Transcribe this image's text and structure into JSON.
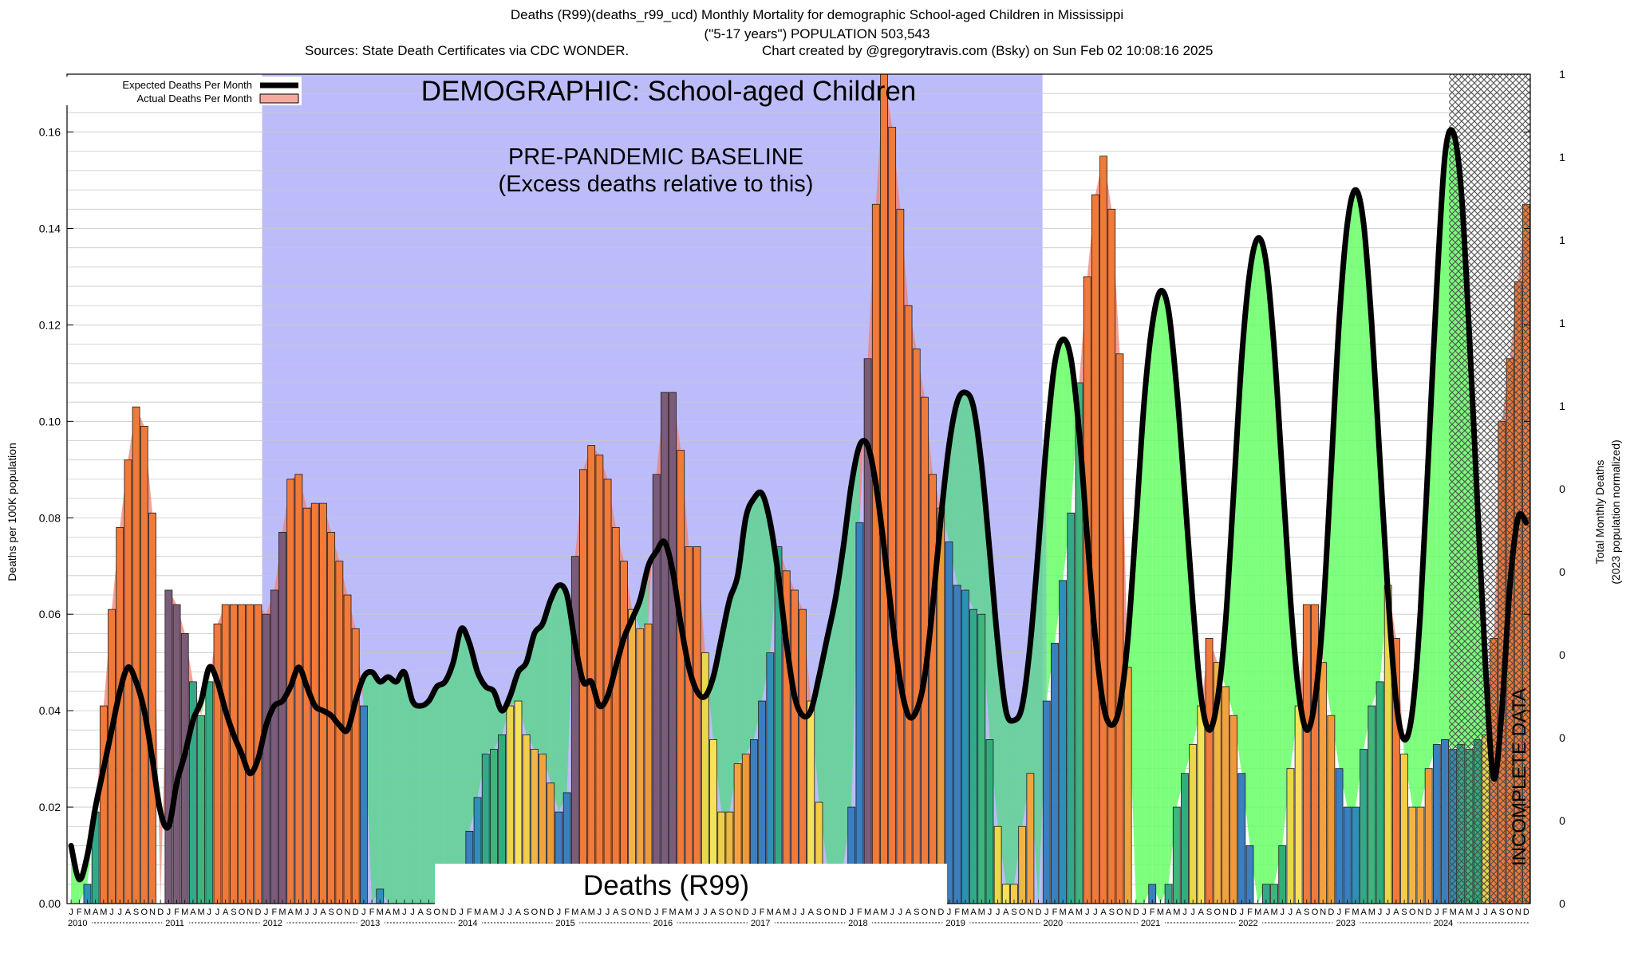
{
  "header": {
    "title": "Deaths (R99)(deaths_r99_ucd) Monthly Mortality for demographic School-aged Children in Mississippi",
    "subtitle": "(\"5-17 years\") POPULATION 503,543",
    "sources": "Sources: State Death Certificates via CDC WONDER.",
    "credit": "Chart created by @gregorytravis.com (Bsky) on Sun Feb 02 10:08:16 2025"
  },
  "legend": {
    "expected": "Expected Deaths Per Month",
    "actual": "Actual Deaths Per Month"
  },
  "annotations": {
    "demographic": "DEMOGRAPHIC: School-aged Children",
    "baseline_line1": "PRE-PANDEMIC BASELINE",
    "baseline_line2": "(Excess deaths relative to this)",
    "cause": "Deaths (R99)",
    "incomplete": "INCOMPLETE DATA"
  },
  "axes": {
    "ylabel_left": "Deaths per 100K population",
    "ylabel_right_1": "Total Monthly Deaths",
    "ylabel_right_2": "(2023 population normalized)"
  },
  "colors": {
    "baseline_band": "#bcbcfa",
    "excess_fill": "#f08070",
    "expected_line": "#000000",
    "deficit_green": "#66ff66",
    "incomplete_hatch": "#555555"
  },
  "chart_data": {
    "type": "bar",
    "title": "Deaths (R99)(deaths_r99_ucd) Monthly Mortality for demographic School-aged Children in Mississippi",
    "xlabel": "",
    "ylabel": "Deaths per 100K population",
    "ylim": [
      0,
      0.172
    ],
    "yticks": [
      0.0,
      0.02,
      0.04,
      0.06,
      0.08,
      0.1,
      0.12,
      0.14,
      0.16
    ],
    "ytick_labels": [
      "0.00",
      "0.02",
      "0.04",
      "0.06",
      "0.08",
      "0.10",
      "0.12",
      "0.14",
      "0.16"
    ],
    "right_tick_labels": [
      "1",
      "1",
      "1",
      "1",
      "1",
      "0",
      "0",
      "0",
      "0",
      "0",
      "0"
    ],
    "start": "2010-01",
    "month_letters": [
      "J",
      "F",
      "M",
      "A",
      "M",
      "J",
      "J",
      "A",
      "S",
      "O",
      "N",
      "D"
    ],
    "years": [
      "2010",
      "2011",
      "2012",
      "2013",
      "2014",
      "2015",
      "2016",
      "2017",
      "2018",
      "2019",
      "2020",
      "2021",
      "2022",
      "2023",
      "2024"
    ],
    "baseline_period": [
      "2012-01",
      "2019-12"
    ],
    "incomplete_period": [
      "2024-03",
      "2024-12"
    ],
    "grid": true,
    "legend_position": "top-left",
    "series": [
      {
        "name": "Actual Deaths Per Month",
        "values": [
          0.0,
          0.0,
          0.004,
          0.019,
          0.041,
          0.061,
          0.078,
          0.092,
          0.103,
          0.099,
          0.081,
          0.0,
          0.065,
          0.062,
          0.056,
          0.046,
          0.039,
          0.046,
          0.058,
          0.062,
          0.062,
          0.062,
          0.062,
          0.062,
          0.06,
          0.065,
          0.077,
          0.088,
          0.089,
          0.082,
          0.083,
          0.083,
          0.077,
          0.071,
          0.064,
          0.057,
          0.041,
          0.0,
          0.003,
          0.0,
          0.0,
          0.0,
          0.0,
          0.0,
          0.0,
          0.0,
          0.0,
          0.0,
          0.0,
          0.015,
          0.022,
          0.031,
          0.032,
          0.035,
          0.041,
          0.042,
          0.035,
          0.032,
          0.031,
          0.025,
          0.019,
          0.023,
          0.072,
          0.09,
          0.095,
          0.093,
          0.088,
          0.078,
          0.071,
          0.061,
          0.057,
          0.058,
          0.089,
          0.106,
          0.106,
          0.094,
          0.074,
          0.074,
          0.052,
          0.034,
          0.019,
          0.019,
          0.029,
          0.031,
          0.034,
          0.042,
          0.052,
          0.074,
          0.069,
          0.065,
          0.061,
          0.042,
          0.021,
          0.008,
          0.008,
          0.008,
          0.02,
          0.079,
          0.113,
          0.145,
          0.18,
          0.161,
          0.144,
          0.124,
          0.115,
          0.105,
          0.089,
          0.082,
          0.075,
          0.066,
          0.065,
          0.061,
          0.06,
          0.034,
          0.016,
          0.004,
          0.004,
          0.016,
          0.027,
          0.0,
          0.042,
          0.054,
          0.067,
          0.081,
          0.108,
          0.13,
          0.147,
          0.155,
          0.144,
          0.114,
          0.049,
          0.0,
          0.0,
          0.004,
          0.0,
          0.004,
          0.02,
          0.027,
          0.033,
          0.041,
          0.055,
          0.05,
          0.045,
          0.039,
          0.027,
          0.012,
          0.0,
          0.004,
          0.004,
          0.012,
          0.028,
          0.041,
          0.062,
          0.062,
          0.05,
          0.039,
          0.028,
          0.02,
          0.02,
          0.032,
          0.041,
          0.046,
          0.066,
          0.055,
          0.031,
          0.02,
          0.02,
          0.028,
          0.033,
          0.034,
          0.032,
          0.033,
          0.032,
          0.034,
          0.035,
          0.055,
          0.1,
          0.113,
          0.129,
          0.145
        ]
      },
      {
        "name": "Expected Deaths Per Month",
        "values": [
          0.012,
          0.005,
          0.01,
          0.02,
          0.028,
          0.036,
          0.044,
          0.049,
          0.046,
          0.04,
          0.03,
          0.019,
          0.016,
          0.025,
          0.031,
          0.038,
          0.042,
          0.049,
          0.046,
          0.04,
          0.035,
          0.031,
          0.027,
          0.03,
          0.037,
          0.041,
          0.042,
          0.045,
          0.049,
          0.045,
          0.041,
          0.04,
          0.039,
          0.037,
          0.036,
          0.042,
          0.047,
          0.048,
          0.046,
          0.047,
          0.046,
          0.048,
          0.042,
          0.041,
          0.042,
          0.045,
          0.046,
          0.05,
          0.057,
          0.054,
          0.048,
          0.045,
          0.044,
          0.04,
          0.043,
          0.048,
          0.05,
          0.056,
          0.058,
          0.063,
          0.066,
          0.064,
          0.054,
          0.046,
          0.046,
          0.041,
          0.043,
          0.049,
          0.055,
          0.059,
          0.063,
          0.07,
          0.073,
          0.075,
          0.069,
          0.058,
          0.049,
          0.044,
          0.043,
          0.047,
          0.055,
          0.063,
          0.068,
          0.08,
          0.084,
          0.085,
          0.079,
          0.068,
          0.054,
          0.043,
          0.039,
          0.04,
          0.047,
          0.055,
          0.063,
          0.074,
          0.087,
          0.095,
          0.095,
          0.087,
          0.074,
          0.059,
          0.046,
          0.039,
          0.04,
          0.047,
          0.062,
          0.08,
          0.095,
          0.104,
          0.106,
          0.103,
          0.091,
          0.073,
          0.054,
          0.04,
          0.038,
          0.041,
          0.054,
          0.074,
          0.096,
          0.112,
          0.117,
          0.113,
          0.098,
          0.076,
          0.055,
          0.041,
          0.037,
          0.041,
          0.055,
          0.079,
          0.104,
          0.12,
          0.127,
          0.123,
          0.107,
          0.085,
          0.062,
          0.043,
          0.036,
          0.042,
          0.058,
          0.085,
          0.113,
          0.131,
          0.138,
          0.133,
          0.115,
          0.089,
          0.063,
          0.044,
          0.036,
          0.042,
          0.06,
          0.09,
          0.121,
          0.141,
          0.148,
          0.141,
          0.12,
          0.092,
          0.064,
          0.042,
          0.034,
          0.04,
          0.061,
          0.094,
          0.128,
          0.155,
          0.16,
          0.148,
          0.118,
          0.083,
          0.049,
          0.026,
          0.04,
          0.066,
          0.08,
          0.079
        ]
      }
    ]
  }
}
